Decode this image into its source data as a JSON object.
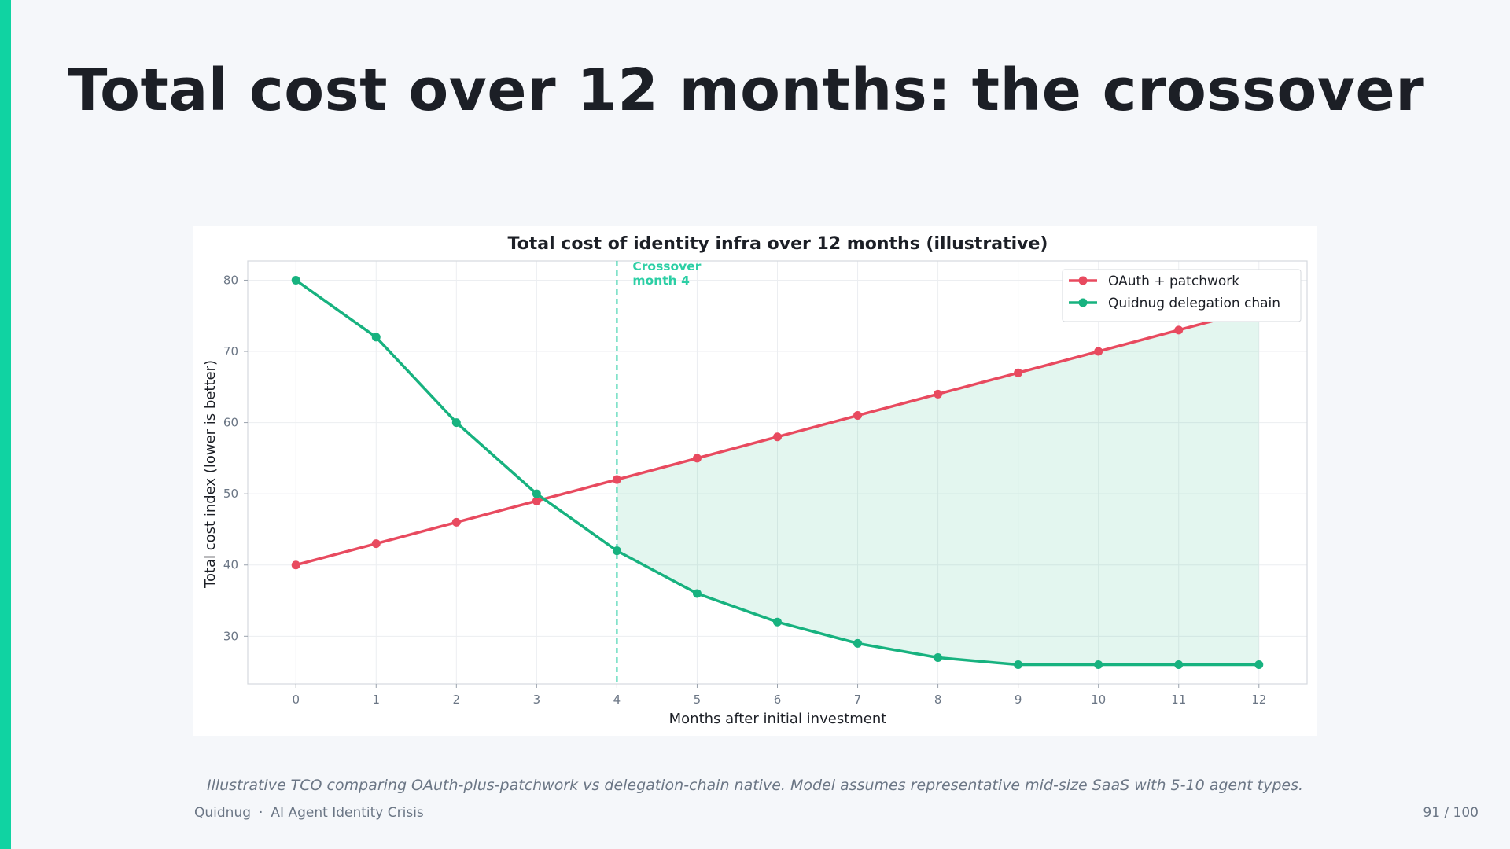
{
  "slide": {
    "title": "Total cost over 12 months: the crossover",
    "caption": "Illustrative TCO comparing OAuth-plus-patchwork vs delegation-chain native. Model assumes representative mid-size SaaS with 5-10 agent types.",
    "footer_brand": "Quidnug",
    "footer_separator": "·",
    "footer_deck": "AI Agent Identity Crisis",
    "page_number": "91 / 100",
    "accent_color": "#10d3a2"
  },
  "chart_data": {
    "type": "line",
    "title": "Total cost of identity infra over 12 months (illustrative)",
    "xlabel": "Months after initial investment",
    "ylabel": "Total cost index (lower is better)",
    "x": [
      0,
      1,
      2,
      3,
      4,
      5,
      6,
      7,
      8,
      9,
      10,
      11,
      12
    ],
    "xlim": [
      -0.6,
      12.6
    ],
    "ylim": [
      23.3,
      82.7
    ],
    "yticks": [
      30,
      40,
      50,
      60,
      70,
      80
    ],
    "grid": true,
    "legend_position": "top-right",
    "series": [
      {
        "name": "OAuth + patchwork",
        "color": "#e84a5f",
        "values": [
          40,
          43,
          46,
          49,
          52,
          55,
          58,
          61,
          64,
          67,
          70,
          73,
          76
        ]
      },
      {
        "name": "Quidnug delegation chain",
        "color": "#17b27f",
        "values": [
          80,
          72,
          60,
          50,
          42,
          36,
          32,
          29,
          27,
          26,
          26,
          26,
          26
        ]
      }
    ],
    "annotation": {
      "text_line1": "Crossover",
      "text_line2": "month 4",
      "x": 4,
      "color": "#2ccfa5"
    },
    "fill_between": {
      "from_x": 4,
      "to_x": 12,
      "color": "#17b27f"
    }
  }
}
